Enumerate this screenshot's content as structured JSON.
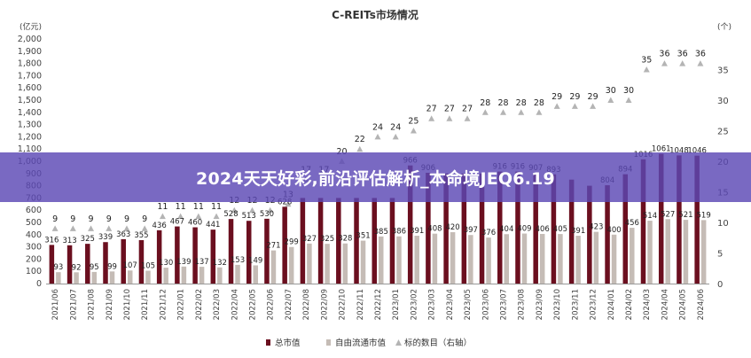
{
  "banner": {
    "text": "2024天天好彩,前沿评估解析_本命境JEQ6.19"
  },
  "colors": {
    "total": "#6b0f1f",
    "free": "#c5bcb6",
    "count": "#b4b4b4",
    "banner": "#5c48b4"
  },
  "chart_data": {
    "type": "bar",
    "title": "C-REITs市场情况",
    "ylabel_left": "(亿元)",
    "ylabel_right": "(个)",
    "ylim_left": [
      0,
      2000
    ],
    "ylim_right": [
      0,
      40
    ],
    "yticks_left": [
      "0",
      "100",
      "200",
      "300",
      "400",
      "500",
      "600",
      "700",
      "800",
      "900",
      "1,000",
      "1,100",
      "1,200",
      "1,300",
      "1,400",
      "1,500",
      "1,600",
      "1,700",
      "1,800",
      "1,900",
      "2,000"
    ],
    "yticks_right": [
      "0",
      "5",
      "10",
      "15",
      "20",
      "25",
      "30",
      "35"
    ],
    "categories": [
      "2021/06",
      "2021/07",
      "2021/08",
      "2021/09",
      "2021/10",
      "2021/11",
      "2021/12",
      "2022/01",
      "2022/02",
      "2022/03",
      "2022/04",
      "2022/05",
      "2022/06",
      "2022/07",
      "2022/08",
      "2022/09",
      "2022/10",
      "2022/11",
      "2022/12",
      "2023/01",
      "2023/02",
      "2023/03",
      "2023/04",
      "2023/05",
      "2023/06",
      "2023/07",
      "2023/08",
      "2023/09",
      "2023/10",
      "2023/11",
      "2023/12",
      "2024/01",
      "2024/02",
      "2024/03",
      "2024/04",
      "2024/05",
      "2024/06"
    ],
    "series": [
      {
        "name": "总市值",
        "type": "bar",
        "values": [
          316,
          313,
          325,
          339,
          363,
          355,
          436,
          467,
          460,
          441,
          528,
          513,
          530,
          628,
          700,
          700,
          700,
          700,
          700,
          700,
          966,
          906,
          900,
          900,
          900,
          916,
          916,
          907,
          893,
          850,
          800,
          804,
          894,
          1016,
          1061,
          1048,
          1046
        ],
        "labels": [
          "316",
          "313",
          "325",
          "339",
          "363",
          "355",
          "436",
          "467",
          "460",
          "441",
          "528",
          "513",
          "530",
          "628",
          "",
          "",
          "",
          "",
          "",
          "",
          "966",
          "906",
          "",
          "",
          "",
          "916",
          "916",
          "907",
          "893",
          "",
          "",
          "804",
          "894",
          "1016",
          "1061",
          "1048",
          "1046"
        ]
      },
      {
        "name": "自由流通市值",
        "type": "bar",
        "values": [
          93,
          92,
          95,
          99,
          107,
          105,
          130,
          139,
          137,
          132,
          153,
          149,
          271,
          299,
          327,
          325,
          328,
          351,
          385,
          386,
          391,
          408,
          420,
          397,
          376,
          404,
          409,
          406,
          405,
          391,
          423,
          400,
          456,
          514,
          527,
          521,
          519
        ],
        "labels": [
          "93",
          "92",
          "95",
          "99",
          "107",
          "105",
          "130",
          "139",
          "137",
          "132",
          "153",
          "149",
          "271",
          "299",
          "327",
          "325",
          "328",
          "351",
          "385",
          "386",
          "391",
          "408",
          "420",
          "397",
          "376",
          "404",
          "409",
          "406",
          "405",
          "391",
          "423",
          "400",
          "456",
          "514",
          "527",
          "521",
          "519"
        ]
      },
      {
        "name": "标的数目（右轴）",
        "type": "scatter",
        "values": [
          9,
          9,
          9,
          9,
          9,
          9,
          11,
          11,
          11,
          11,
          12,
          12,
          12,
          13,
          17,
          17,
          20,
          22,
          24,
          24,
          25,
          27,
          27,
          27,
          28,
          28,
          28,
          28,
          29,
          29,
          29,
          30,
          30,
          35,
          36,
          36,
          36
        ],
        "labels": [
          "9",
          "9",
          "9",
          "9",
          "9",
          "9",
          "11",
          "11",
          "11",
          "11",
          "12",
          "12",
          "12",
          "13",
          "17",
          "17",
          "20",
          "22",
          "24",
          "24",
          "25",
          "27",
          "27",
          "27",
          "28",
          "28",
          "28",
          "28",
          "29",
          "29",
          "29",
          "30",
          "30",
          "35",
          "36",
          "36",
          "36"
        ]
      }
    ],
    "legend": [
      "总市值",
      "自由流通市值",
      "标的数目（右轴）"
    ],
    "legend_position": "bottom"
  }
}
